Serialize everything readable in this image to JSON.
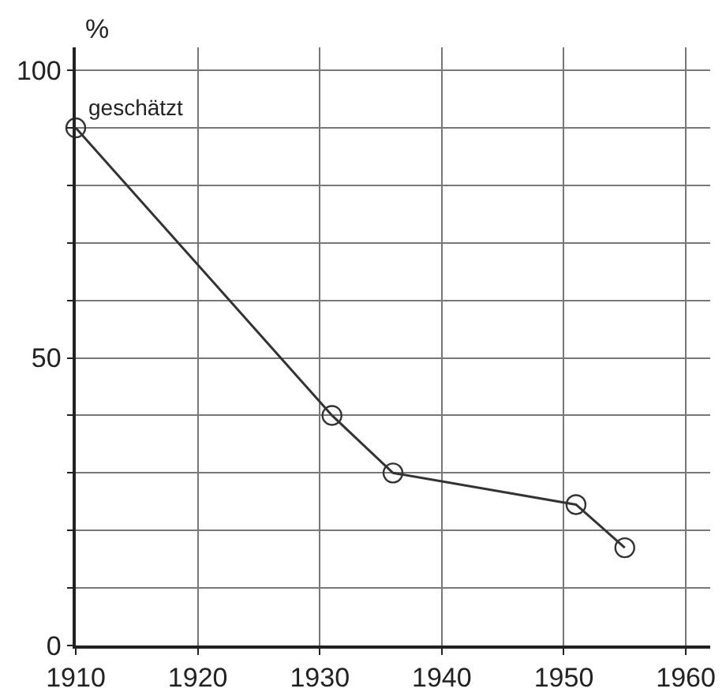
{
  "chart_data": {
    "type": "line",
    "ylabel": "%",
    "x": [
      1910,
      1931,
      1936,
      1951,
      1955
    ],
    "values": [
      90,
      40,
      30,
      24.5,
      17
    ],
    "color": "#333333",
    "marker": "circle",
    "line_style": "solid",
    "grid": true,
    "xlim": [
      1910,
      1962
    ],
    "xticks": [
      1910,
      1920,
      1930,
      1940,
      1950,
      1960
    ],
    "ylim": [
      0,
      104
    ],
    "yticks": [
      0,
      {
        "value": 10,
        "label": null
      },
      {
        "value": 20,
        "label": null
      },
      {
        "value": 30,
        "label": null
      },
      {
        "value": 40,
        "label": null
      },
      50,
      {
        "value": 60,
        "label": null
      },
      {
        "value": 70,
        "label": null
      },
      {
        "value": 80,
        "label": null
      },
      {
        "value": 90,
        "label": null
      },
      100
    ],
    "annotations": [
      {
        "text": "geschätzt",
        "x": 1910,
        "y": 90
      }
    ]
  }
}
